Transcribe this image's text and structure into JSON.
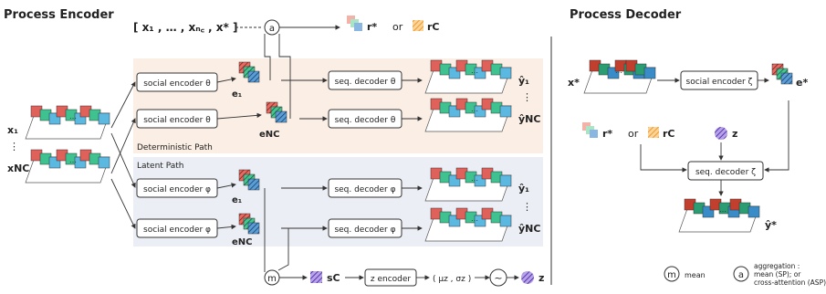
{
  "titles": {
    "encoder": "Process Encoder",
    "decoder": "Process Decoder"
  },
  "context_set": "[ x₁ , … , xₙ꜀ , x* ]",
  "encoder": {
    "det_path": "Deterministic Path",
    "lat_path": "Latent Path",
    "soc_theta_1": "social encoder θ",
    "soc_theta_2": "social encoder θ",
    "soc_phi_1": "social encoder φ",
    "soc_phi_2": "social encoder φ",
    "seq_theta_1": "seq. decoder θ",
    "seq_theta_2": "seq. decoder θ",
    "seq_phi_1": "seq. decoder φ",
    "seq_phi_2": "seq. decoder φ",
    "z_encoder": "z encoder",
    "mu_sigma": "( μz , σz )",
    "tilde": "~",
    "s_c": "sC",
    "z": "z",
    "e1": "e₁",
    "enc": "eNC",
    "e1b": "e₁",
    "encb": "eNC",
    "x1": "x₁",
    "xnc": "xNC",
    "vdots": "⋮",
    "y1": "ŷ₁",
    "ync": "ŷNC",
    "y1b": "ŷ₁",
    "yncb": "ŷNC",
    "r_star": "r*",
    "or": "or",
    "r_c": "rC",
    "agg_a": "a",
    "mean_m": "m"
  },
  "decoder": {
    "x_star": "x*",
    "social": "social encoder ζ",
    "e_star": "e*",
    "seq": "seq. decoder ζ",
    "y_star": "ŷ*",
    "r_star": "r*",
    "or": "or",
    "r_c": "rC",
    "z": "z"
  },
  "legend": {
    "m_label": "mean",
    "a_label_1": "aggregation :",
    "a_label_2": "mean (SP); or",
    "a_label_3": "cross-attention (ASP)"
  },
  "colors": {
    "red": "#e0605a",
    "green": "#3ec28f",
    "blue": "#5bb8e0",
    "peach": "#fbeee4",
    "lilac": "#eceef6",
    "purple": "#7a55c7",
    "orange": "#f3a64a"
  }
}
